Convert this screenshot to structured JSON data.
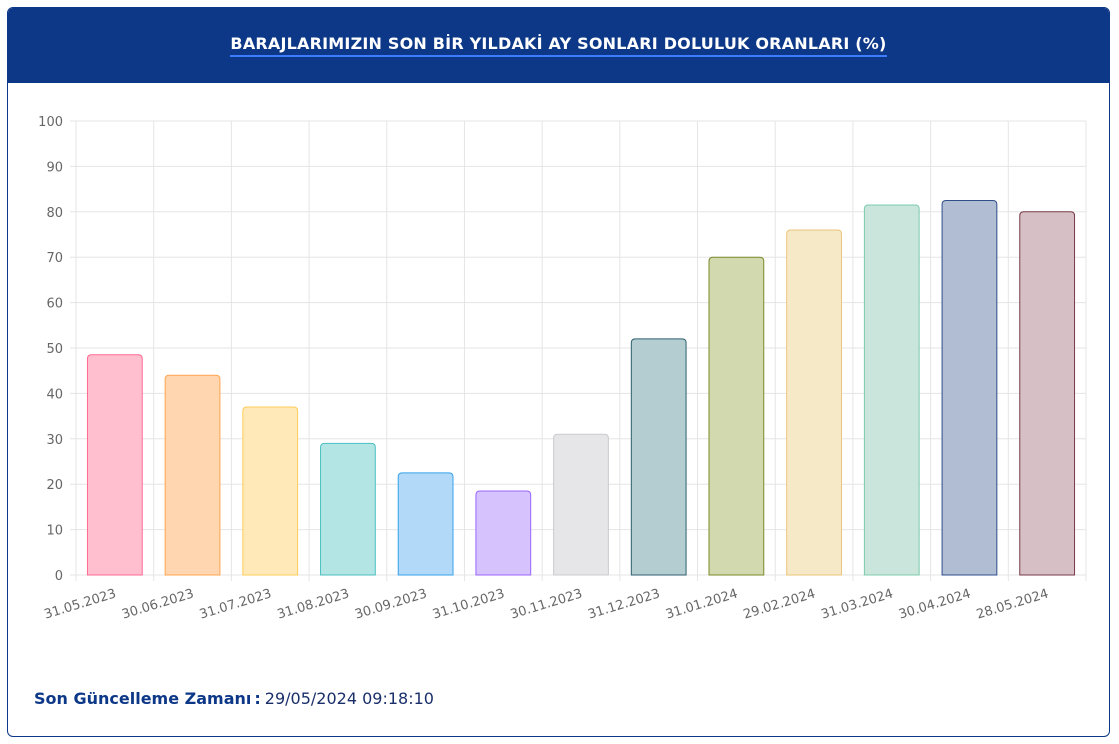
{
  "header": {
    "title": "BARAJLARIMIZIN SON BİR YILDAKİ AY SONLARI DOLULUK ORANLARI (%)"
  },
  "footer": {
    "label": "Son Güncelleme Zamanı",
    "separator": ":",
    "value": "29/05/2024 09:18:10"
  },
  "colors": {
    "header_bg": "#0d3887",
    "grid": "#e5e5e5",
    "axis_text": "#666666"
  },
  "chart_data": {
    "type": "bar",
    "title": "BARAJLARIMIZIN SON BİR YILDAKİ AY SONLARI DOLULUK ORANLARI (%)",
    "xlabel": "",
    "ylabel": "",
    "ylim": [
      0,
      100
    ],
    "y_ticks": [
      "0",
      "10",
      "20",
      "30",
      "40",
      "50",
      "60",
      "70",
      "80",
      "90",
      "100"
    ],
    "grid": true,
    "legend": "none",
    "categories": [
      "31.05.2023",
      "30.06.2023",
      "31.07.2023",
      "31.08.2023",
      "30.09.2023",
      "31.10.2023",
      "30.11.2023",
      "31.12.2023",
      "31.01.2024",
      "29.02.2024",
      "31.03.2024",
      "30.04.2024",
      "28.05.2024"
    ],
    "values": [
      48.5,
      44,
      37,
      29,
      22.5,
      18.5,
      31,
      52,
      70,
      76,
      81.5,
      82.5,
      80
    ],
    "bar_fill_colors": [
      "#ffbfcf",
      "#ffd6b0",
      "#ffe9b8",
      "#b4e5e5",
      "#b2d9f7",
      "#d6c3fd",
      "#e6e6e8",
      "#b3cdd1",
      "#d3d9ae",
      "#f6e9c7",
      "#c9e5dc",
      "#b1bdd2",
      "#d7c0c5"
    ],
    "bar_border_colors": [
      "#ff6a93",
      "#ffa550",
      "#ffcc57",
      "#4bc0c0",
      "#36a2eb",
      "#9966ff",
      "#c9cbcf",
      "#2f5f6d",
      "#7a8a2a",
      "#eac57a",
      "#7ccbad",
      "#2e4e8c",
      "#7a3a4a"
    ]
  }
}
